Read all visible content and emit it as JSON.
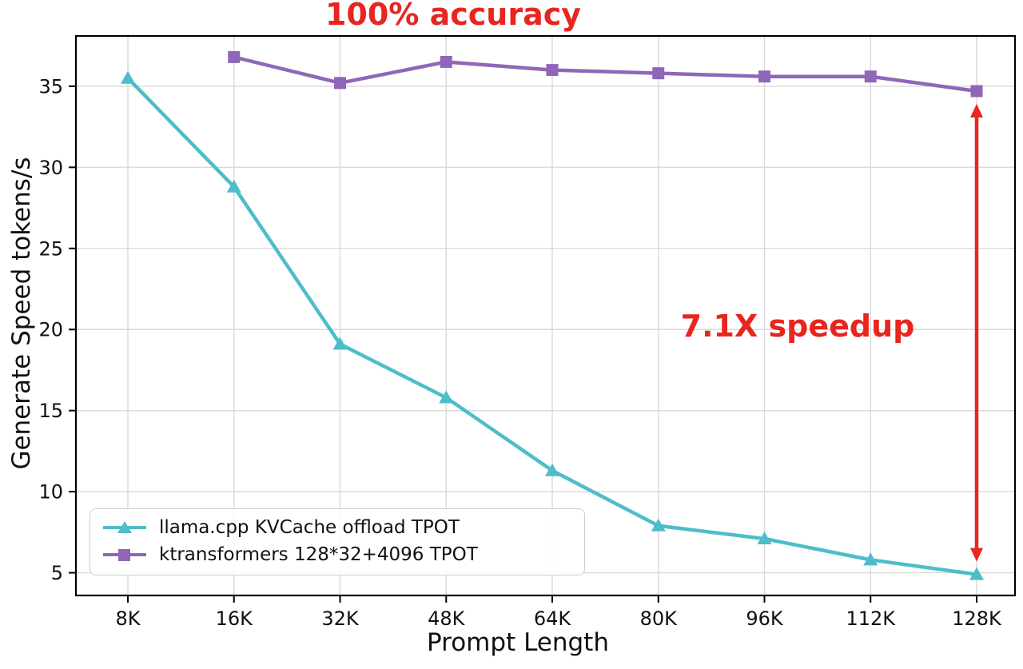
{
  "chart_data": {
    "type": "line",
    "title": "100% accuracy",
    "title_color": "#e8251f",
    "xlabel": "Prompt Length",
    "ylabel": "Generate Speed tokens/s",
    "categories": [
      "8K",
      "16K",
      "32K",
      "48K",
      "64K",
      "80K",
      "96K",
      "112K",
      "128K"
    ],
    "yticks": [
      5,
      10,
      15,
      20,
      25,
      30,
      35
    ],
    "ylim": [
      3.6,
      38.1
    ],
    "grid": true,
    "legend_position": "lower left",
    "series": [
      {
        "name": "llama.cpp KVCache offload TPOT",
        "color": "#4dbdca",
        "marker": "triangle",
        "values": [
          35.5,
          28.8,
          19.1,
          15.8,
          11.3,
          7.9,
          7.1,
          5.8,
          4.9
        ]
      },
      {
        "name": "ktransformers 128*32+4096 TPOT",
        "color": "#9066b8",
        "marker": "square",
        "values": [
          null,
          36.8,
          35.2,
          36.5,
          36.0,
          35.8,
          35.6,
          35.6,
          34.7
        ]
      }
    ],
    "annotation": {
      "text": "7.1X speedup",
      "color": "#e8251f",
      "arrow_x_category": "128K",
      "arrow_y_from": 34.7,
      "arrow_y_to": 4.9
    }
  }
}
